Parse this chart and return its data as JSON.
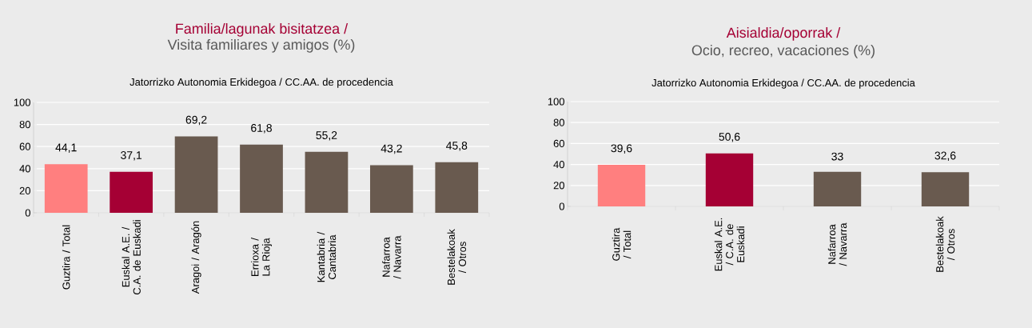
{
  "chart_data": [
    {
      "type": "bar",
      "title": "Familia/lagunak bisitatzea /",
      "subtitle": "Visita familiares y amigos (%)",
      "annotations": [
        "Jatorrizko Autonomia  Erkidegoa /  CC.AA. de procedencia"
      ],
      "categories": [
        "Guztira / Total",
        "Euskal A.E. / C.A. de Euskadi",
        "Aragoi / Aragón",
        "Errioxa / La Rioja",
        "Kantabria / Cantabria",
        "Nafarroa / Navarra",
        "Bestelakoak / Otros"
      ],
      "values": [
        44.1,
        37.1,
        69.2,
        61.8,
        55.2,
        43.2,
        45.8
      ],
      "value_labels": [
        "44,1",
        "37,1",
        "69,2",
        "61,8",
        "55,2",
        "43,2",
        "45,8"
      ],
      "colors": [
        "#ff7f7f",
        "#a50034",
        "#695a4f",
        "#695a4f",
        "#695a4f",
        "#695a4f",
        "#695a4f"
      ],
      "ylim": [
        0,
        100
      ],
      "yticks": [
        0,
        20,
        40,
        60,
        80,
        100
      ],
      "grid": "y"
    },
    {
      "type": "bar",
      "title": "Aisialdia/oporrak /",
      "subtitle": "Ocio, recreo, vacaciones (%)",
      "annotations": [
        "Jatorrizko Autonomia  Erkidegoa /  CC.AA. de procedencia"
      ],
      "categories": [
        "Guztira / Total",
        "Euskal A.E. / C.A. de Euskadi",
        "Nafarroa / Navarra",
        "Bestelakoak / Otros"
      ],
      "values": [
        39.6,
        50.6,
        33,
        32.6
      ],
      "value_labels": [
        "39,6",
        "50,6",
        "33",
        "32,6"
      ],
      "colors": [
        "#ff7f7f",
        "#a50034",
        "#695a4f",
        "#695a4f"
      ],
      "ylim": [
        0,
        100
      ],
      "yticks": [
        0,
        20,
        40,
        60,
        80,
        100
      ],
      "grid": "y"
    }
  ]
}
